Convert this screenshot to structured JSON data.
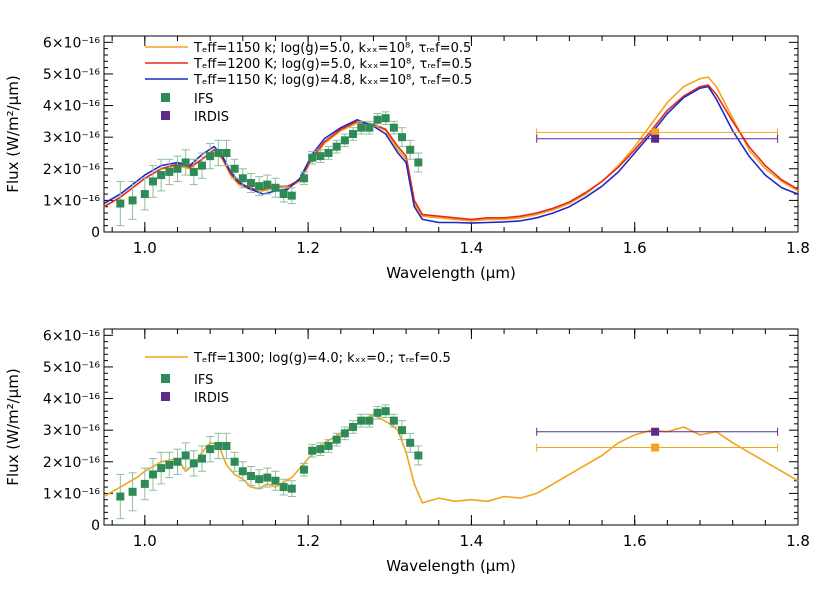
{
  "chart_data": [
    {
      "type": "line",
      "xlabel": "Wavelength (μm)",
      "ylabel": "Flux (W/m²/μm)",
      "xlim": [
        0.95,
        1.8
      ],
      "ylim": [
        0,
        6.2e-16
      ],
      "xticks": [
        1.0,
        1.2,
        1.4,
        1.6,
        1.8
      ],
      "xtick_labels": [
        "1.0",
        "1.2",
        "1.4",
        "1.6",
        "1.8"
      ],
      "yticks": [
        0,
        1e-16,
        2e-16,
        3e-16,
        4e-16,
        5e-16,
        6e-16
      ],
      "ytick_labels": [
        "0",
        "1×10⁻¹⁶",
        "2×10⁻¹⁶",
        "3×10⁻¹⁶",
        "4×10⁻¹⁶",
        "5×10⁻¹⁶",
        "6×10⁻¹⁶"
      ],
      "legend_position": "top-left",
      "series": [
        {
          "name": "T_eff=1150 k; log(g)=5.0, k_zz=10^8, τ_ref=0.5",
          "color": "#f2a51a",
          "x": [
            0.95,
            0.97,
            0.99,
            1.0,
            1.02,
            1.04,
            1.055,
            1.07,
            1.085,
            1.095,
            1.105,
            1.115,
            1.125,
            1.135,
            1.145,
            1.16,
            1.175,
            1.19,
            1.205,
            1.22,
            1.24,
            1.26,
            1.28,
            1.295,
            1.31,
            1.32,
            1.33,
            1.34,
            1.36,
            1.38,
            1.4,
            1.42,
            1.44,
            1.46,
            1.48,
            1.5,
            1.52,
            1.54,
            1.56,
            1.58,
            1.6,
            1.62,
            1.64,
            1.66,
            1.68,
            1.69,
            1.7,
            1.72,
            1.74,
            1.76,
            1.78,
            1.8
          ],
          "y": [
            8e-17,
            1.1e-16,
            1.5e-16,
            1.7e-16,
            2e-16,
            2.1e-16,
            2e-16,
            2.3e-16,
            2.6e-16,
            2.3e-16,
            1.8e-16,
            1.5e-16,
            1.4e-16,
            1.3e-16,
            1.3e-16,
            1.4e-16,
            1.4e-16,
            1.6e-16,
            2.3e-16,
            2.8e-16,
            3.2e-16,
            3.45e-16,
            3.4e-16,
            3.2e-16,
            2.6e-16,
            2.3e-16,
            9e-17,
            5e-17,
            4.5e-17,
            4e-17,
            3.5e-17,
            4e-17,
            4e-17,
            4.5e-17,
            5.5e-17,
            7e-17,
            9e-17,
            1.2e-16,
            1.6e-16,
            2.1e-16,
            2.7e-16,
            3.4e-16,
            4.1e-16,
            4.6e-16,
            4.85e-16,
            4.9e-16,
            4.6e-16,
            3.6e-16,
            2.6e-16,
            2e-16,
            1.6e-16,
            1.3e-16
          ]
        },
        {
          "name": "T_eff=1200 K; log(g)=5.0, k_zz=10^8, τ_ref=0.5",
          "color": "#e8291c",
          "x": [
            0.95,
            0.97,
            0.99,
            1.0,
            1.02,
            1.04,
            1.055,
            1.07,
            1.085,
            1.095,
            1.105,
            1.115,
            1.125,
            1.135,
            1.145,
            1.16,
            1.175,
            1.19,
            1.205,
            1.22,
            1.24,
            1.26,
            1.28,
            1.295,
            1.31,
            1.32,
            1.33,
            1.34,
            1.36,
            1.38,
            1.4,
            1.42,
            1.44,
            1.46,
            1.48,
            1.5,
            1.52,
            1.54,
            1.56,
            1.58,
            1.6,
            1.62,
            1.64,
            1.66,
            1.68,
            1.69,
            1.7,
            1.72,
            1.74,
            1.76,
            1.78,
            1.8
          ],
          "y": [
            8e-17,
            1.1e-16,
            1.5e-16,
            1.7e-16,
            2e-16,
            2.15e-16,
            2.05e-16,
            2.3e-16,
            2.6e-16,
            2.35e-16,
            1.85e-16,
            1.55e-16,
            1.45e-16,
            1.35e-16,
            1.35e-16,
            1.45e-16,
            1.45e-16,
            1.65e-16,
            2.35e-16,
            2.85e-16,
            3.25e-16,
            3.5e-16,
            3.4e-16,
            3.25e-16,
            2.7e-16,
            2.4e-16,
            1e-16,
            5.5e-17,
            5e-17,
            4.5e-17,
            4e-17,
            4.5e-17,
            4.5e-17,
            5e-17,
            6e-17,
            7.5e-17,
            9.5e-17,
            1.25e-16,
            1.6e-16,
            2.05e-16,
            2.6e-16,
            3.2e-16,
            3.85e-16,
            4.3e-16,
            4.6e-16,
            4.65e-16,
            4.35e-16,
            3.5e-16,
            2.7e-16,
            2.1e-16,
            1.65e-16,
            1.35e-16
          ]
        },
        {
          "name": "T_eff=1150 K; log(g)=4.8, k_zz=10^8, τ_ref=0.5",
          "color": "#1f29c9",
          "x": [
            0.95,
            0.97,
            0.99,
            1.0,
            1.02,
            1.04,
            1.055,
            1.07,
            1.085,
            1.095,
            1.105,
            1.115,
            1.125,
            1.135,
            1.145,
            1.16,
            1.175,
            1.19,
            1.205,
            1.22,
            1.24,
            1.26,
            1.28,
            1.295,
            1.31,
            1.32,
            1.33,
            1.34,
            1.36,
            1.38,
            1.4,
            1.42,
            1.44,
            1.46,
            1.48,
            1.5,
            1.52,
            1.54,
            1.56,
            1.58,
            1.6,
            1.62,
            1.64,
            1.66,
            1.68,
            1.69,
            1.7,
            1.72,
            1.74,
            1.76,
            1.78,
            1.8
          ],
          "y": [
            9e-17,
            1.2e-16,
            1.6e-16,
            1.8e-16,
            2.1e-16,
            2.2e-16,
            2.1e-16,
            2.45e-16,
            2.7e-16,
            2.4e-16,
            1.9e-16,
            1.6e-16,
            1.4e-16,
            1.3e-16,
            1.2e-16,
            1.3e-16,
            1.35e-16,
            1.7e-16,
            2.45e-16,
            2.95e-16,
            3.3e-16,
            3.55e-16,
            3.35e-16,
            3.1e-16,
            2.5e-16,
            2.2e-16,
            8e-17,
            4e-17,
            3e-17,
            3e-17,
            2.8e-17,
            3e-17,
            3.2e-17,
            3.5e-17,
            4.5e-17,
            6e-17,
            8e-17,
            1.1e-16,
            1.45e-16,
            1.9e-16,
            2.5e-16,
            3.1e-16,
            3.75e-16,
            4.25e-16,
            4.55e-16,
            4.6e-16,
            4.2e-16,
            3.2e-16,
            2.4e-16,
            1.8e-16,
            1.4e-16,
            1.2e-16
          ]
        }
      ],
      "ifs": {
        "name": "IFS",
        "color": "#2e8b57",
        "error_color": "#8fbf9f",
        "points": [
          {
            "x": 0.97,
            "y": 9e-17,
            "err": 7e-17
          },
          {
            "x": 0.985,
            "y": 1e-16,
            "err": 6e-17
          },
          {
            "x": 1.0,
            "y": 1.2e-16,
            "err": 5e-17
          },
          {
            "x": 1.01,
            "y": 1.6e-16,
            "err": 5e-17
          },
          {
            "x": 1.02,
            "y": 1.8e-16,
            "err": 5e-17
          },
          {
            "x": 1.03,
            "y": 1.9e-16,
            "err": 4e-17
          },
          {
            "x": 1.04,
            "y": 2e-16,
            "err": 4e-17
          },
          {
            "x": 1.05,
            "y": 2.2e-16,
            "err": 4e-17
          },
          {
            "x": 1.06,
            "y": 1.9e-16,
            "err": 4e-17
          },
          {
            "x": 1.07,
            "y": 2.1e-16,
            "err": 4e-17
          },
          {
            "x": 1.08,
            "y": 2.4e-16,
            "err": 4e-17
          },
          {
            "x": 1.09,
            "y": 2.5e-16,
            "err": 4e-17
          },
          {
            "x": 1.1,
            "y": 2.5e-16,
            "err": 4e-17
          },
          {
            "x": 1.11,
            "y": 2e-16,
            "err": 3e-17
          },
          {
            "x": 1.12,
            "y": 1.7e-16,
            "err": 3e-17
          },
          {
            "x": 1.13,
            "y": 1.55e-16,
            "err": 3e-17
          },
          {
            "x": 1.14,
            "y": 1.45e-16,
            "err": 3e-17
          },
          {
            "x": 1.15,
            "y": 1.5e-16,
            "err": 3e-17
          },
          {
            "x": 1.16,
            "y": 1.4e-16,
            "err": 3e-17
          },
          {
            "x": 1.17,
            "y": 1.2e-16,
            "err": 2.5e-17
          },
          {
            "x": 1.18,
            "y": 1.15e-16,
            "err": 2.5e-17
          },
          {
            "x": 1.195,
            "y": 1.7e-16,
            "err": 2e-17
          },
          {
            "x": 1.205,
            "y": 2.35e-16,
            "err": 2e-17
          },
          {
            "x": 1.215,
            "y": 2.4e-16,
            "err": 2e-17
          },
          {
            "x": 1.225,
            "y": 2.5e-16,
            "err": 2e-17
          },
          {
            "x": 1.235,
            "y": 2.7e-16,
            "err": 2e-17
          },
          {
            "x": 1.245,
            "y": 2.9e-16,
            "err": 2e-17
          },
          {
            "x": 1.255,
            "y": 3.1e-16,
            "err": 2e-17
          },
          {
            "x": 1.265,
            "y": 3.3e-16,
            "err": 2e-17
          },
          {
            "x": 1.275,
            "y": 3.3e-16,
            "err": 2e-17
          },
          {
            "x": 1.285,
            "y": 3.55e-16,
            "err": 2e-17
          },
          {
            "x": 1.295,
            "y": 3.6e-16,
            "err": 2e-17
          },
          {
            "x": 1.305,
            "y": 3.3e-16,
            "err": 2e-17
          },
          {
            "x": 1.315,
            "y": 3e-16,
            "err": 3e-17
          },
          {
            "x": 1.325,
            "y": 2.6e-16,
            "err": 3e-17
          },
          {
            "x": 1.335,
            "y": 2.2e-16,
            "err": 3e-17
          }
        ]
      },
      "irdis": [
        {
          "name": "IRDIS",
          "color": "#f2a51a",
          "x": 1.625,
          "y": 3.15e-16,
          "xerr_low": 1.48,
          "xerr_high": 1.775
        },
        {
          "name": "IRDIS",
          "color": "#5b2c8a",
          "x": 1.625,
          "y": 2.95e-16,
          "xerr_low": 1.48,
          "xerr_high": 1.775
        }
      ],
      "legend": {
        "line1": "Tₑff=1150 k; log(g)=5.0, kₓₓ=10⁸, τᵣₑf=0.5",
        "line2": "Tₑff=1200 K; log(g)=5.0, kₓₓ=10⁸, τᵣₑf=0.5",
        "line3": "Tₑff=1150 K; log(g)=4.8, kₓₓ=10⁸, τᵣₑf=0.5",
        "ifs": "IFS",
        "irdis": "IRDIS"
      }
    },
    {
      "type": "line",
      "xlabel": "Wavelength (μm)",
      "ylabel": "Flux (W/m²/μm)",
      "xlim": [
        0.95,
        1.8
      ],
      "ylim": [
        0,
        6.2e-16
      ],
      "xticks": [
        1.0,
        1.2,
        1.4,
        1.6,
        1.8
      ],
      "xtick_labels": [
        "1.0",
        "1.2",
        "1.4",
        "1.6",
        "1.8"
      ],
      "yticks": [
        0,
        1e-16,
        2e-16,
        3e-16,
        4e-16,
        5e-16,
        6e-16
      ],
      "ytick_labels": [
        "0",
        "1×10⁻¹⁶",
        "2×10⁻¹⁶",
        "3×10⁻¹⁶",
        "4×10⁻¹⁶",
        "5×10⁻¹⁶",
        "6×10⁻¹⁶"
      ],
      "legend_position": "top-left",
      "series": [
        {
          "name": "T_eff=1300; log(g)=4.0; k_zz=0.; τ_ref=0.5",
          "color": "#f2a51a",
          "x": [
            0.95,
            0.97,
            0.99,
            1.0,
            1.02,
            1.04,
            1.05,
            1.06,
            1.07,
            1.08,
            1.09,
            1.1,
            1.11,
            1.12,
            1.13,
            1.14,
            1.15,
            1.16,
            1.17,
            1.18,
            1.2,
            1.22,
            1.24,
            1.26,
            1.28,
            1.3,
            1.31,
            1.32,
            1.33,
            1.34,
            1.36,
            1.38,
            1.4,
            1.42,
            1.44,
            1.46,
            1.48,
            1.5,
            1.52,
            1.54,
            1.56,
            1.58,
            1.6,
            1.62,
            1.64,
            1.66,
            1.68,
            1.7,
            1.72,
            1.74,
            1.76,
            1.78,
            1.8
          ],
          "y": [
            9e-17,
            1.2e-16,
            1.5e-16,
            1.7e-16,
            2e-16,
            2.1e-16,
            1.7e-16,
            1.9e-16,
            2.3e-16,
            2.6e-16,
            2.55e-16,
            1.9e-16,
            1.6e-16,
            1.45e-16,
            1.2e-16,
            1.15e-16,
            1.3e-16,
            1.2e-16,
            1.35e-16,
            1.5e-16,
            2.1e-16,
            2.6e-16,
            2.9e-16,
            3.2e-16,
            3.5e-16,
            3.2e-16,
            3e-16,
            2.3e-16,
            1.3e-16,
            7e-17,
            8.5e-17,
            7.5e-17,
            8e-17,
            7.5e-17,
            9e-17,
            8.5e-17,
            1e-16,
            1.3e-16,
            1.6e-16,
            1.9e-16,
            2.2e-16,
            2.6e-16,
            2.85e-16,
            3e-16,
            2.95e-16,
            3.1e-16,
            2.85e-16,
            2.95e-16,
            2.6e-16,
            2.3e-16,
            2e-16,
            1.7e-16,
            1.4e-16
          ]
        }
      ],
      "ifs": {
        "name": "IFS",
        "color": "#2e8b57",
        "error_color": "#8fbf9f",
        "points": [
          {
            "x": 0.97,
            "y": 9e-17,
            "err": 7e-17
          },
          {
            "x": 0.985,
            "y": 1.05e-16,
            "err": 6e-17
          },
          {
            "x": 1.0,
            "y": 1.3e-16,
            "err": 5e-17
          },
          {
            "x": 1.01,
            "y": 1.6e-16,
            "err": 5e-17
          },
          {
            "x": 1.02,
            "y": 1.8e-16,
            "err": 5e-17
          },
          {
            "x": 1.03,
            "y": 1.9e-16,
            "err": 4e-17
          },
          {
            "x": 1.04,
            "y": 2e-16,
            "err": 4e-17
          },
          {
            "x": 1.05,
            "y": 2.2e-16,
            "err": 4e-17
          },
          {
            "x": 1.06,
            "y": 1.95e-16,
            "err": 4e-17
          },
          {
            "x": 1.07,
            "y": 2.1e-16,
            "err": 4e-17
          },
          {
            "x": 1.08,
            "y": 2.4e-16,
            "err": 4e-17
          },
          {
            "x": 1.09,
            "y": 2.5e-16,
            "err": 4e-17
          },
          {
            "x": 1.1,
            "y": 2.5e-16,
            "err": 4e-17
          },
          {
            "x": 1.11,
            "y": 2e-16,
            "err": 3e-17
          },
          {
            "x": 1.12,
            "y": 1.7e-16,
            "err": 3e-17
          },
          {
            "x": 1.13,
            "y": 1.55e-16,
            "err": 3e-17
          },
          {
            "x": 1.14,
            "y": 1.45e-16,
            "err": 3e-17
          },
          {
            "x": 1.15,
            "y": 1.5e-16,
            "err": 3e-17
          },
          {
            "x": 1.16,
            "y": 1.4e-16,
            "err": 3e-17
          },
          {
            "x": 1.17,
            "y": 1.2e-16,
            "err": 2.5e-17
          },
          {
            "x": 1.18,
            "y": 1.15e-16,
            "err": 2.5e-17
          },
          {
            "x": 1.195,
            "y": 1.75e-16,
            "err": 2e-17
          },
          {
            "x": 1.205,
            "y": 2.35e-16,
            "err": 2e-17
          },
          {
            "x": 1.215,
            "y": 2.4e-16,
            "err": 2e-17
          },
          {
            "x": 1.225,
            "y": 2.5e-16,
            "err": 2e-17
          },
          {
            "x": 1.235,
            "y": 2.7e-16,
            "err": 2e-17
          },
          {
            "x": 1.245,
            "y": 2.9e-16,
            "err": 2e-17
          },
          {
            "x": 1.255,
            "y": 3.1e-16,
            "err": 2e-17
          },
          {
            "x": 1.265,
            "y": 3.3e-16,
            "err": 2e-17
          },
          {
            "x": 1.275,
            "y": 3.3e-16,
            "err": 2e-17
          },
          {
            "x": 1.285,
            "y": 3.55e-16,
            "err": 2e-17
          },
          {
            "x": 1.295,
            "y": 3.6e-16,
            "err": 2e-17
          },
          {
            "x": 1.305,
            "y": 3.3e-16,
            "err": 2e-17
          },
          {
            "x": 1.315,
            "y": 3e-16,
            "err": 3e-17
          },
          {
            "x": 1.325,
            "y": 2.6e-16,
            "err": 3e-17
          },
          {
            "x": 1.335,
            "y": 2.2e-16,
            "err": 3e-17
          }
        ]
      },
      "irdis": [
        {
          "name": "IRDIS",
          "color": "#5b2c8a",
          "x": 1.625,
          "y": 2.95e-16,
          "xerr_low": 1.48,
          "xerr_high": 1.775
        },
        {
          "name": "IRDIS",
          "color": "#f2a51a",
          "x": 1.625,
          "y": 2.45e-16,
          "xerr_low": 1.48,
          "xerr_high": 1.775
        }
      ],
      "legend": {
        "line1": "Tₑff=1300; log(g)=4.0; kₓₓ=0.; τᵣₑf=0.5",
        "ifs": "IFS",
        "irdis": "IRDIS"
      }
    }
  ]
}
